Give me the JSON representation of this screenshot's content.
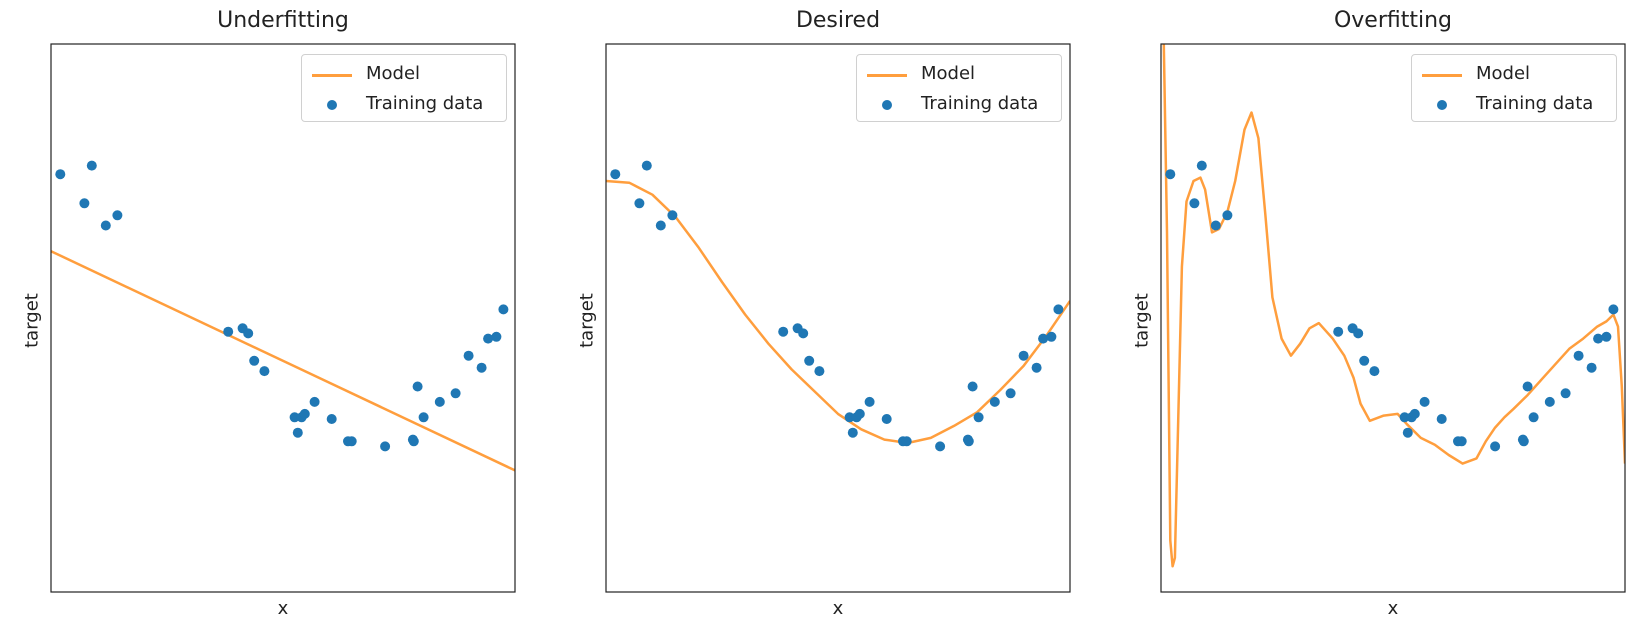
{
  "chart_data": [
    {
      "type": "line",
      "title": "Underfitting",
      "xlabel": "x",
      "ylabel": "target",
      "xlim": [
        0,
        1
      ],
      "ylim": [
        -1.6,
        1.6
      ],
      "grid": false,
      "legend": {
        "placement": "top-right",
        "entries": [
          "Model",
          "Training data"
        ]
      },
      "series": [
        {
          "name": "Model",
          "kind": "line",
          "color": "#ff9e3d",
          "x": [
            0,
            1
          ],
          "y": [
            0.39,
            -0.89
          ]
        },
        {
          "name": "Training data",
          "kind": "scatter",
          "color": "#1f77b4",
          "x": [
            0.02,
            0.072,
            0.088,
            0.118,
            0.143,
            0.382,
            0.413,
            0.425,
            0.438,
            0.46,
            0.525,
            0.532,
            0.54,
            0.547,
            0.568,
            0.605,
            0.64,
            0.648,
            0.72,
            0.78,
            0.782,
            0.79,
            0.803,
            0.838,
            0.872,
            0.9,
            0.928,
            0.942,
            0.96,
            0.975
          ],
          "y": [
            0.84,
            0.67,
            0.89,
            0.54,
            0.6,
            -0.08,
            -0.06,
            -0.09,
            -0.25,
            -0.31,
            -0.58,
            -0.67,
            -0.58,
            -0.56,
            -0.49,
            -0.59,
            -0.72,
            -0.72,
            -0.75,
            -0.71,
            -0.72,
            -0.4,
            -0.58,
            -0.49,
            -0.44,
            -0.22,
            -0.29,
            -0.12,
            -0.11,
            0.05
          ]
        }
      ]
    },
    {
      "type": "line",
      "title": "Desired",
      "xlabel": "x",
      "ylabel": "target",
      "xlim": [
        0,
        1
      ],
      "ylim": [
        -1.6,
        1.6
      ],
      "grid": false,
      "legend": {
        "placement": "top-right",
        "entries": [
          "Model",
          "Training data"
        ]
      },
      "series": [
        {
          "name": "Model",
          "kind": "line",
          "color": "#ff9e3d",
          "x": [
            0,
            0.05,
            0.1,
            0.15,
            0.2,
            0.25,
            0.3,
            0.35,
            0.4,
            0.45,
            0.5,
            0.55,
            0.6,
            0.65,
            0.7,
            0.75,
            0.8,
            0.85,
            0.9,
            0.95,
            1.0
          ],
          "y": [
            0.8,
            0.79,
            0.72,
            0.59,
            0.41,
            0.21,
            0.02,
            -0.15,
            -0.3,
            -0.43,
            -0.56,
            -0.65,
            -0.71,
            -0.73,
            -0.7,
            -0.63,
            -0.55,
            -0.42,
            -0.28,
            -0.1,
            0.1
          ]
        },
        {
          "name": "Training data",
          "kind": "scatter",
          "color": "#1f77b4",
          "x": [
            0.02,
            0.072,
            0.088,
            0.118,
            0.143,
            0.382,
            0.413,
            0.425,
            0.438,
            0.46,
            0.525,
            0.532,
            0.54,
            0.547,
            0.568,
            0.605,
            0.64,
            0.648,
            0.72,
            0.78,
            0.782,
            0.79,
            0.803,
            0.838,
            0.872,
            0.9,
            0.928,
            0.942,
            0.96,
            0.975
          ],
          "y": [
            0.84,
            0.67,
            0.89,
            0.54,
            0.6,
            -0.08,
            -0.06,
            -0.09,
            -0.25,
            -0.31,
            -0.58,
            -0.67,
            -0.58,
            -0.56,
            -0.49,
            -0.59,
            -0.72,
            -0.72,
            -0.75,
            -0.71,
            -0.72,
            -0.4,
            -0.58,
            -0.49,
            -0.44,
            -0.22,
            -0.29,
            -0.12,
            -0.11,
            0.05
          ]
        }
      ]
    },
    {
      "type": "line",
      "title": "Overfitting",
      "xlabel": "x",
      "ylabel": "target",
      "xlim": [
        0,
        1
      ],
      "ylim": [
        -1.6,
        1.6
      ],
      "grid": false,
      "legend": {
        "placement": "top-right",
        "entries": [
          "Model",
          "Training data"
        ]
      },
      "series": [
        {
          "name": "Model",
          "kind": "line",
          "color": "#ff9e3d",
          "x": [
            0,
            0.006,
            0.013,
            0.02,
            0.025,
            0.03,
            0.037,
            0.045,
            0.055,
            0.07,
            0.085,
            0.095,
            0.11,
            0.125,
            0.143,
            0.16,
            0.18,
            0.195,
            0.21,
            0.225,
            0.24,
            0.26,
            0.28,
            0.3,
            0.32,
            0.34,
            0.37,
            0.395,
            0.415,
            0.43,
            0.45,
            0.48,
            0.51,
            0.53,
            0.56,
            0.59,
            0.62,
            0.65,
            0.68,
            0.7,
            0.72,
            0.74,
            0.76,
            0.79,
            0.82,
            0.85,
            0.88,
            0.91,
            0.94,
            0.96,
            0.975,
            0.985,
            0.993,
            1.0
          ],
          "y": [
            1.8,
            1.6,
            0.5,
            -1.3,
            -1.45,
            -1.4,
            -0.6,
            0.3,
            0.68,
            0.8,
            0.82,
            0.75,
            0.5,
            0.52,
            0.62,
            0.8,
            1.1,
            1.2,
            1.05,
            0.6,
            0.12,
            -0.12,
            -0.22,
            -0.15,
            -0.06,
            -0.03,
            -0.12,
            -0.22,
            -0.35,
            -0.5,
            -0.6,
            -0.57,
            -0.56,
            -0.62,
            -0.7,
            -0.74,
            -0.8,
            -0.85,
            -0.82,
            -0.72,
            -0.64,
            -0.58,
            -0.53,
            -0.45,
            -0.36,
            -0.27,
            -0.18,
            -0.12,
            -0.05,
            -0.02,
            0.02,
            -0.05,
            -0.4,
            -0.85
          ]
        },
        {
          "name": "Training data",
          "kind": "scatter",
          "color": "#1f77b4",
          "x": [
            0.02,
            0.072,
            0.088,
            0.118,
            0.143,
            0.382,
            0.413,
            0.425,
            0.438,
            0.46,
            0.525,
            0.532,
            0.54,
            0.547,
            0.568,
            0.605,
            0.64,
            0.648,
            0.72,
            0.78,
            0.782,
            0.79,
            0.803,
            0.838,
            0.872,
            0.9,
            0.928,
            0.942,
            0.96,
            0.975
          ],
          "y": [
            0.84,
            0.67,
            0.89,
            0.54,
            0.6,
            -0.08,
            -0.06,
            -0.09,
            -0.25,
            -0.31,
            -0.58,
            -0.67,
            -0.58,
            -0.56,
            -0.49,
            -0.59,
            -0.72,
            -0.72,
            -0.75,
            -0.71,
            -0.72,
            -0.4,
            -0.58,
            -0.49,
            -0.44,
            -0.22,
            -0.29,
            -0.12,
            -0.11,
            0.05
          ]
        }
      ]
    }
  ]
}
